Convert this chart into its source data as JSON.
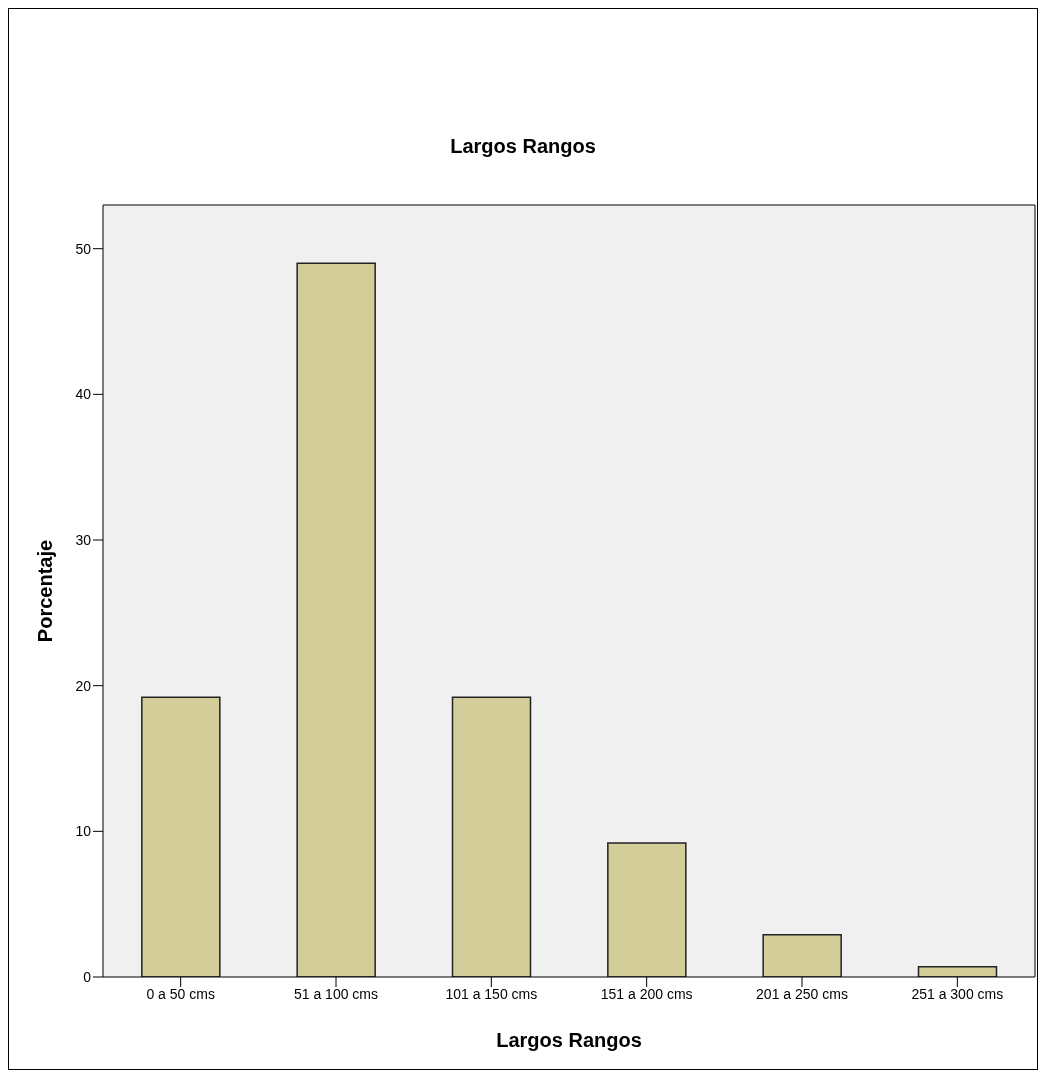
{
  "chart_data": {
    "type": "bar",
    "title": "Largos Rangos",
    "xlabel": "Largos Rangos",
    "ylabel": "Porcentaje",
    "categories": [
      "0 a 50 cms",
      "51 a 100 cms",
      "101 a 150 cms",
      "151 a 200 cms",
      "201 a 250 cms",
      "251 a 300 cms"
    ],
    "values": [
      19.2,
      49.0,
      19.2,
      9.2,
      2.9,
      0.7
    ],
    "color": "#d3ce99",
    "ylim": [
      0,
      53
    ],
    "yticks": [
      0,
      10,
      20,
      30,
      40,
      50
    ],
    "grid": false
  }
}
